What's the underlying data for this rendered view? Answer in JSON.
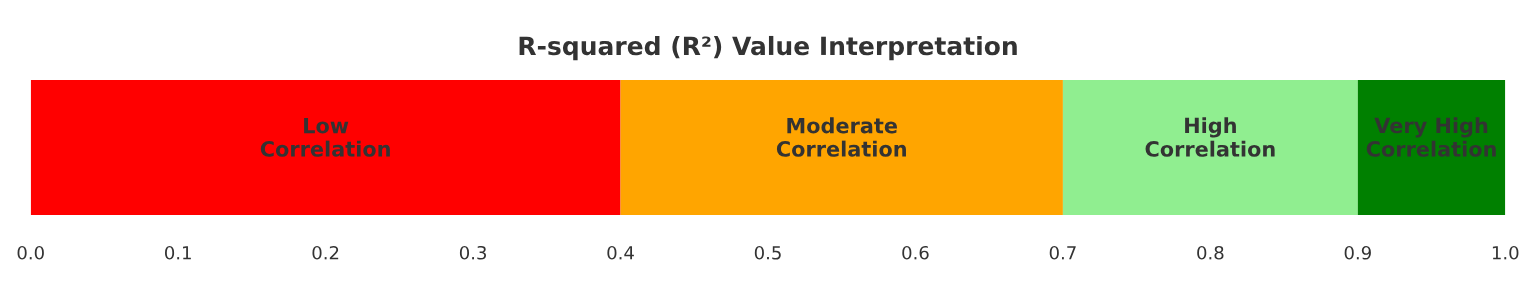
{
  "chart_data": {
    "type": "bar",
    "orientation": "horizontal",
    "stacked": true,
    "title": "R-squared (R²) Value Interpretation",
    "categories": [
      null
    ],
    "series": [
      {
        "name": "Low\nCorrelation",
        "color": "#ff0000",
        "values": [
          0.4
        ]
      },
      {
        "name": "Moderate\nCorrelation",
        "color": "#ffa500",
        "values": [
          0.3
        ]
      },
      {
        "name": "High\nCorrelation",
        "color": "#90ee90",
        "values": [
          0.2
        ]
      },
      {
        "name": "Very High\nCorrelation",
        "color": "#008000",
        "values": [
          0.1
        ]
      }
    ],
    "xlim": [
      0,
      1
    ],
    "xticks": [
      {
        "value": 0,
        "label": "0.0"
      },
      0.1,
      0.2,
      0.3,
      0.4,
      0.5,
      0.6,
      0.7,
      0.8,
      0.9,
      {
        "value": 1,
        "label": "1.0"
      }
    ],
    "tick_labels": "x",
    "grid": false,
    "legend": false
  }
}
